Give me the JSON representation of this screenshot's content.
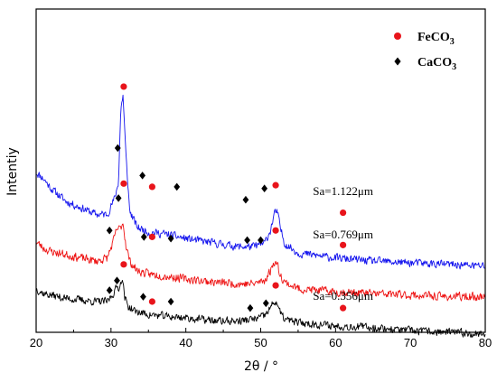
{
  "chart_data": {
    "type": "line",
    "title": "",
    "xlabel": "2θ / °",
    "ylabel": "Intentiy",
    "xlim": [
      20,
      80
    ],
    "xticks": [
      20,
      30,
      40,
      50,
      60,
      70,
      80
    ],
    "ylim": [
      0,
      100
    ],
    "grid": false,
    "legend_position": "top-right",
    "legend": [
      {
        "label": "FeCO",
        "subscript": "3",
        "marker": "circle",
        "color": "#e8141b"
      },
      {
        "label": "CaCO",
        "subscript": "3",
        "marker": "diamond",
        "color": "#000000"
      }
    ],
    "series": [
      {
        "label": "Sa=1.122μm",
        "color": "#1414ee",
        "baseline": 20.5,
        "noise": 1.6,
        "seed": 11,
        "x": [
          20,
          21,
          22,
          24,
          26,
          28,
          29.5,
          30.5,
          31,
          31.3,
          31.6,
          32,
          32.5,
          33.5,
          35,
          37,
          40,
          44,
          47,
          49,
          50.5,
          51.3,
          51.8,
          52.2,
          52.6,
          53.2,
          55,
          60,
          65,
          70,
          75,
          80
        ],
        "y": [
          29,
          27,
          24,
          20,
          18,
          16,
          16,
          21,
          26,
          48,
          53,
          34,
          17,
          12,
          10.5,
          10,
          8.5,
          7,
          6,
          6,
          7,
          11,
          16,
          17,
          12,
          7,
          4,
          2.5,
          1.5,
          1,
          0.5,
          0
        ],
        "fe_markers": [
          [
            31.7,
            76
          ],
          [
            35.5,
            45
          ],
          [
            52,
            45.5
          ],
          [
            61,
            37
          ]
        ],
        "ca_markers": [
          [
            30.9,
            57
          ],
          [
            34.2,
            48.5
          ],
          [
            38.8,
            45
          ],
          [
            48,
            41
          ],
          [
            50.5,
            44.5
          ]
        ],
        "label_pos": [
          61,
          42.5
        ]
      },
      {
        "label": "Sa=0.769μm",
        "color": "#ee1414",
        "baseline": 11,
        "noise": 1.7,
        "seed": 23,
        "x": [
          20,
          21,
          22,
          24,
          26,
          28,
          29.5,
          30.3,
          30.8,
          31.2,
          31.6,
          32,
          32.5,
          33.5,
          35,
          37,
          40,
          44,
          47,
          49,
          50.5,
          51.3,
          51.8,
          52.2,
          52.6,
          53.2,
          55,
          60,
          65,
          70,
          75,
          80
        ],
        "y": [
          17,
          15,
          14,
          13,
          12,
          11,
          12,
          17,
          21,
          21,
          23,
          16,
          11,
          8,
          7,
          6.5,
          5.5,
          4.5,
          4,
          4,
          5,
          8,
          11,
          10,
          7,
          4.5,
          2.5,
          1.5,
          1,
          0.5,
          0,
          0
        ],
        "fe_markers": [
          [
            31.7,
            46
          ],
          [
            35.5,
            29.5
          ],
          [
            52,
            31.5
          ],
          [
            61,
            27
          ]
        ],
        "ca_markers": [
          [
            29.8,
            31.5
          ],
          [
            31.0,
            41.5
          ],
          [
            34.4,
            29.5
          ],
          [
            38.0,
            29
          ],
          [
            48.2,
            28.5
          ],
          [
            50.0,
            28.5
          ]
        ],
        "label_pos": [
          61,
          29
        ]
      },
      {
        "label": "Sa=0.356μm",
        "color": "#000000",
        "baseline": 0,
        "noise": 1.6,
        "seed": 37,
        "x": [
          20,
          21,
          22,
          24,
          26,
          28,
          29.5,
          30.3,
          30.8,
          31.2,
          31.5,
          31.8,
          32.3,
          33.2,
          35,
          37,
          40,
          44,
          47,
          49,
          50.5,
          51.3,
          51.8,
          52.2,
          52.6,
          53.2,
          55,
          60,
          65,
          70,
          75,
          80
        ],
        "y": [
          13.5,
          12,
          11.5,
          10.5,
          10,
          9.5,
          9.5,
          12,
          14,
          14,
          17.5,
          11,
          8,
          6.5,
          5.5,
          5,
          4.5,
          3.5,
          3.5,
          4,
          5,
          7.5,
          9.5,
          9,
          6,
          4,
          3,
          2,
          1.5,
          0.5,
          0,
          -0.5
        ],
        "fe_markers": [
          [
            31.7,
            21
          ],
          [
            35.5,
            9.5
          ],
          [
            52,
            14.5
          ],
          [
            61,
            7.5
          ]
        ],
        "ca_markers": [
          [
            29.8,
            13
          ],
          [
            30.8,
            16
          ],
          [
            34.3,
            11
          ],
          [
            38.0,
            9.5
          ],
          [
            48.6,
            7.5
          ],
          [
            50.7,
            9
          ]
        ],
        "label_pos": [
          61,
          10
        ]
      }
    ]
  }
}
